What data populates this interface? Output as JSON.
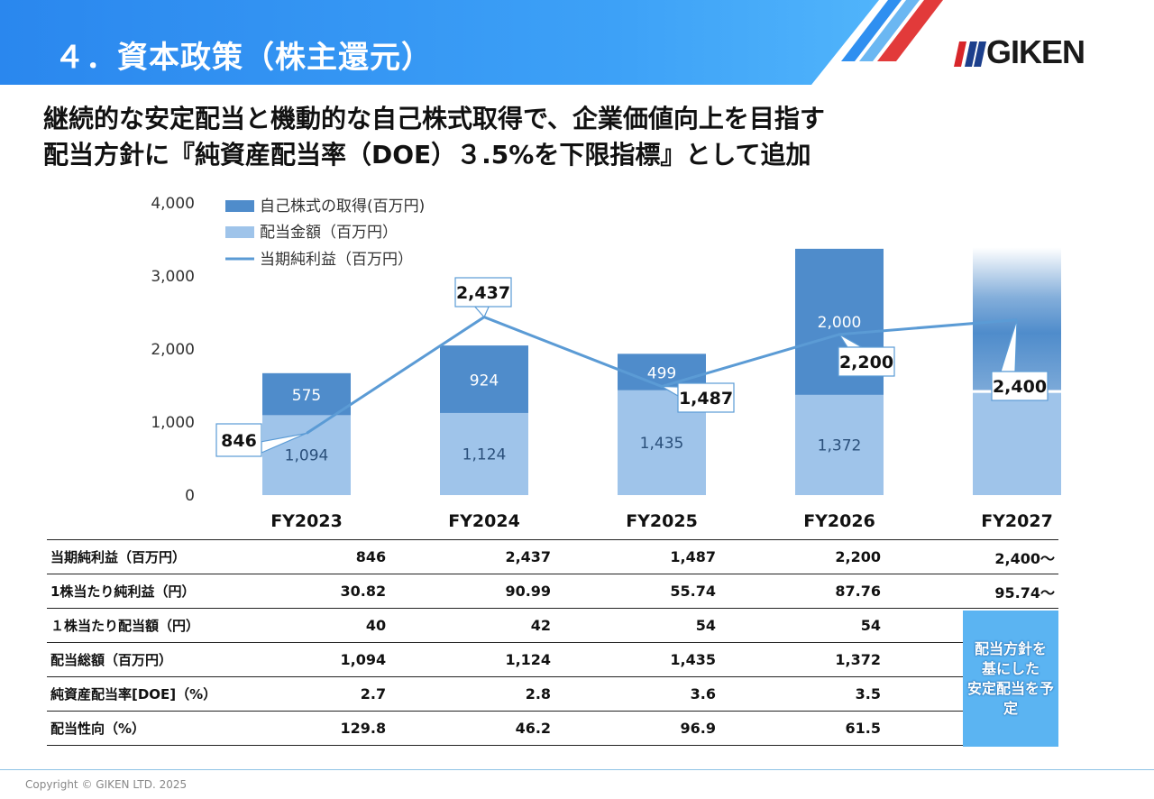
{
  "header": {
    "section_title": "４．資本政策（株主還元）",
    "logo_text": "GIKEN"
  },
  "headline": {
    "line1": "継続的な安定配当と機動的な自己株式取得で、企業価値向上を目指す",
    "line2": "配当方針に『純資産配当率（DOE）３.5%を下限指標』として追加"
  },
  "colors": {
    "header_blue": "#2e8ff0",
    "buyback_bar": "#4f8ccb",
    "dividend_bar": "#9fc4ea",
    "net_income_line": "#5b9bd5",
    "plan_box": "#5bb4f2"
  },
  "chart_data": {
    "type": "bar",
    "stacked": true,
    "categories": [
      "FY2023",
      "FY2024",
      "FY2025",
      "FY2026",
      "FY2027"
    ],
    "ylim": [
      0,
      4000
    ],
    "yticks": [
      "0",
      "1,000",
      "2,000",
      "3,000",
      "4,000"
    ],
    "ytick_values": [
      0,
      1000,
      2000,
      3000,
      4000
    ],
    "series": [
      {
        "name": "配当金額（百万円）",
        "values": [
          1094,
          1124,
          1435,
          1372,
          1400
        ],
        "labels": [
          "1,094",
          "1,124",
          "1,435",
          "1,372",
          ""
        ]
      },
      {
        "name": "自己株式の取得(百万円)",
        "values": [
          575,
          924,
          499,
          2000,
          1990
        ],
        "labels": [
          "575",
          "924",
          "499",
          "2,000",
          ""
        ]
      },
      {
        "name": "当期純利益（百万円）",
        "type": "line",
        "values": [
          846,
          2437,
          1487,
          2200,
          2400
        ],
        "labels": [
          "846",
          "2,437",
          "1,487",
          "2,200",
          "2,400"
        ]
      }
    ],
    "legend": [
      "自己株式の取得(百万円)",
      "配当金額（百万円）",
      "当期純利益（百万円）"
    ],
    "legend_position": "top-left"
  },
  "table": {
    "rows": [
      {
        "label": "当期純利益（百万円）",
        "values": [
          "846",
          "2,437",
          "1,487",
          "2,200",
          "2,400〜"
        ]
      },
      {
        "label": " 1株当たり純利益（円）",
        "values": [
          "30.82",
          "90.99",
          "55.74",
          "87.76",
          "95.74〜"
        ]
      },
      {
        "label": "１株当たり配当額（円）",
        "values": [
          "40",
          "42",
          "54",
          "54",
          ""
        ]
      },
      {
        "label": "配当総額（百万円）",
        "values": [
          "1,094",
          "1,124",
          "1,435",
          "1,372",
          ""
        ]
      },
      {
        "label": "純資産配当率[DOE]（%）",
        "values": [
          "2.7",
          "2.8",
          "3.6",
          "3.5",
          ""
        ]
      },
      {
        "label": "配当性向（%）",
        "values": [
          "129.8",
          "46.2",
          "96.9",
          "61.5",
          ""
        ]
      }
    ],
    "plan_note_lines": [
      "配当方針を",
      "基にした",
      "安定配当を予定"
    ]
  },
  "footer": {
    "copyright": "Copyright © GIKEN LTD. 2025"
  }
}
